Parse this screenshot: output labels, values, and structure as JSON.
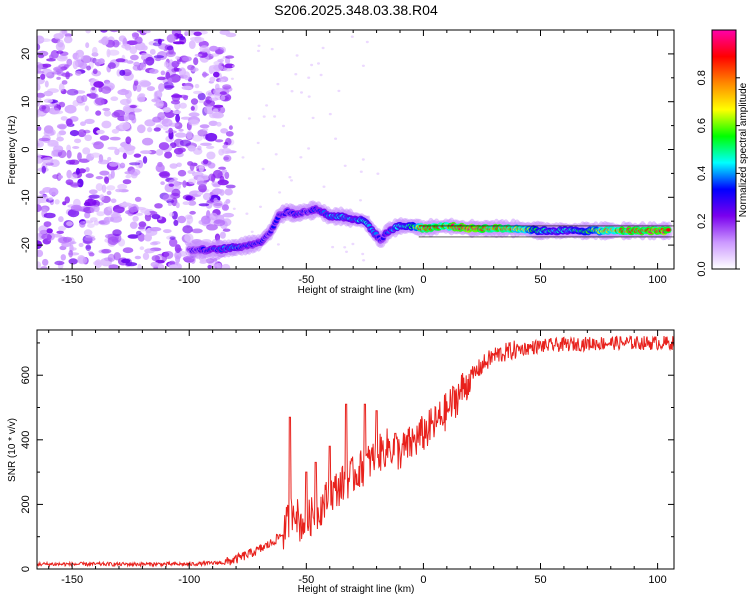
{
  "title": "S206.2025.348.03.38.R04",
  "chart_data": [
    {
      "type": "heatmap",
      "xlabel": "Height of straight line (km)",
      "ylabel": "Frequency (Hz)",
      "xlim": [
        -165,
        107
      ],
      "ylim": [
        -25,
        25
      ],
      "x_ticks": [
        -150,
        -100,
        -50,
        0,
        50,
        100
      ],
      "y_ticks": [
        -20,
        -10,
        0,
        10,
        20
      ],
      "colorbar": {
        "label": "Normalized spectral amplitude",
        "range": [
          0,
          1
        ],
        "ticks": [
          "0.0",
          "0.2",
          "0.4",
          "0.6",
          "0.8"
        ],
        "tick_values": [
          0.0,
          0.2,
          0.4,
          0.6,
          0.8
        ],
        "colors": [
          "#ffffff",
          "#cc99ff",
          "#7a00ee",
          "#0000ff",
          "#00ffff",
          "#00ff00",
          "#ffff00",
          "#ff8800",
          "#ff0000",
          "#ff00aa"
        ]
      },
      "noise_region_x": [
        -165,
        -88
      ],
      "ridge": {
        "x": [
          -100,
          -90,
          -80,
          -75,
          -70,
          -65,
          -62,
          -58,
          -55,
          -50,
          -45,
          -40,
          -35,
          -30,
          -25,
          -20,
          -18,
          -15,
          -10,
          -5,
          0,
          10,
          20,
          30,
          40,
          50,
          60,
          70,
          80,
          90,
          100,
          105
        ],
        "frequency": [
          -21,
          -21,
          -20.5,
          -20,
          -19.5,
          -17,
          -14,
          -13,
          -13.5,
          -13,
          -12.5,
          -14,
          -14,
          -14.5,
          -15,
          -18,
          -19,
          -17,
          -16,
          -16,
          -16.5,
          -16,
          -16.5,
          -16.5,
          -16.5,
          -17,
          -17,
          -17,
          -17,
          -17,
          -17,
          -17
        ],
        "amplitude": [
          0.25,
          0.35,
          0.4,
          0.35,
          0.3,
          0.3,
          0.35,
          0.3,
          0.35,
          0.3,
          0.35,
          0.4,
          0.45,
          0.4,
          0.45,
          0.35,
          0.3,
          0.35,
          0.45,
          0.55,
          0.9,
          0.85,
          0.95,
          0.9,
          0.8,
          0.5,
          0.45,
          0.55,
          0.8,
          0.9,
          0.95,
          0.95
        ]
      }
    },
    {
      "type": "line",
      "xlabel": "Height of straight line (km)",
      "ylabel": "SNR (10 * v/v)",
      "xlim": [
        -165,
        107
      ],
      "ylim": [
        0,
        740
      ],
      "x_ticks": [
        -150,
        -100,
        -50,
        0,
        50,
        100
      ],
      "y_ticks": [
        0,
        200,
        400,
        600
      ],
      "series": [
        {
          "color": "#e8211c",
          "x": [
            -165,
            -100,
            -85,
            -80,
            -75,
            -70,
            -65,
            -60,
            -57,
            -55,
            -53,
            -50,
            -45,
            -40,
            -35,
            -30,
            -25,
            -20,
            -15,
            -10,
            -5,
            0,
            5,
            10,
            15,
            20,
            25,
            30,
            40,
            50,
            60,
            80,
            100,
            107
          ],
          "y": [
            15,
            15,
            20,
            30,
            45,
            60,
            80,
            110,
            160,
            200,
            140,
            150,
            180,
            230,
            260,
            290,
            320,
            350,
            380,
            360,
            390,
            420,
            450,
            490,
            540,
            590,
            630,
            660,
            680,
            690,
            695,
            700,
            700,
            700
          ],
          "spikes": [
            {
              "x": -57,
              "y": 470
            },
            {
              "x": -50,
              "y": 300
            },
            {
              "x": -46,
              "y": 330
            },
            {
              "x": -40,
              "y": 380
            },
            {
              "x": -33,
              "y": 510
            },
            {
              "x": -25,
              "y": 510
            },
            {
              "x": -20,
              "y": 490
            },
            {
              "x": -12,
              "y": 420
            }
          ]
        }
      ]
    }
  ]
}
